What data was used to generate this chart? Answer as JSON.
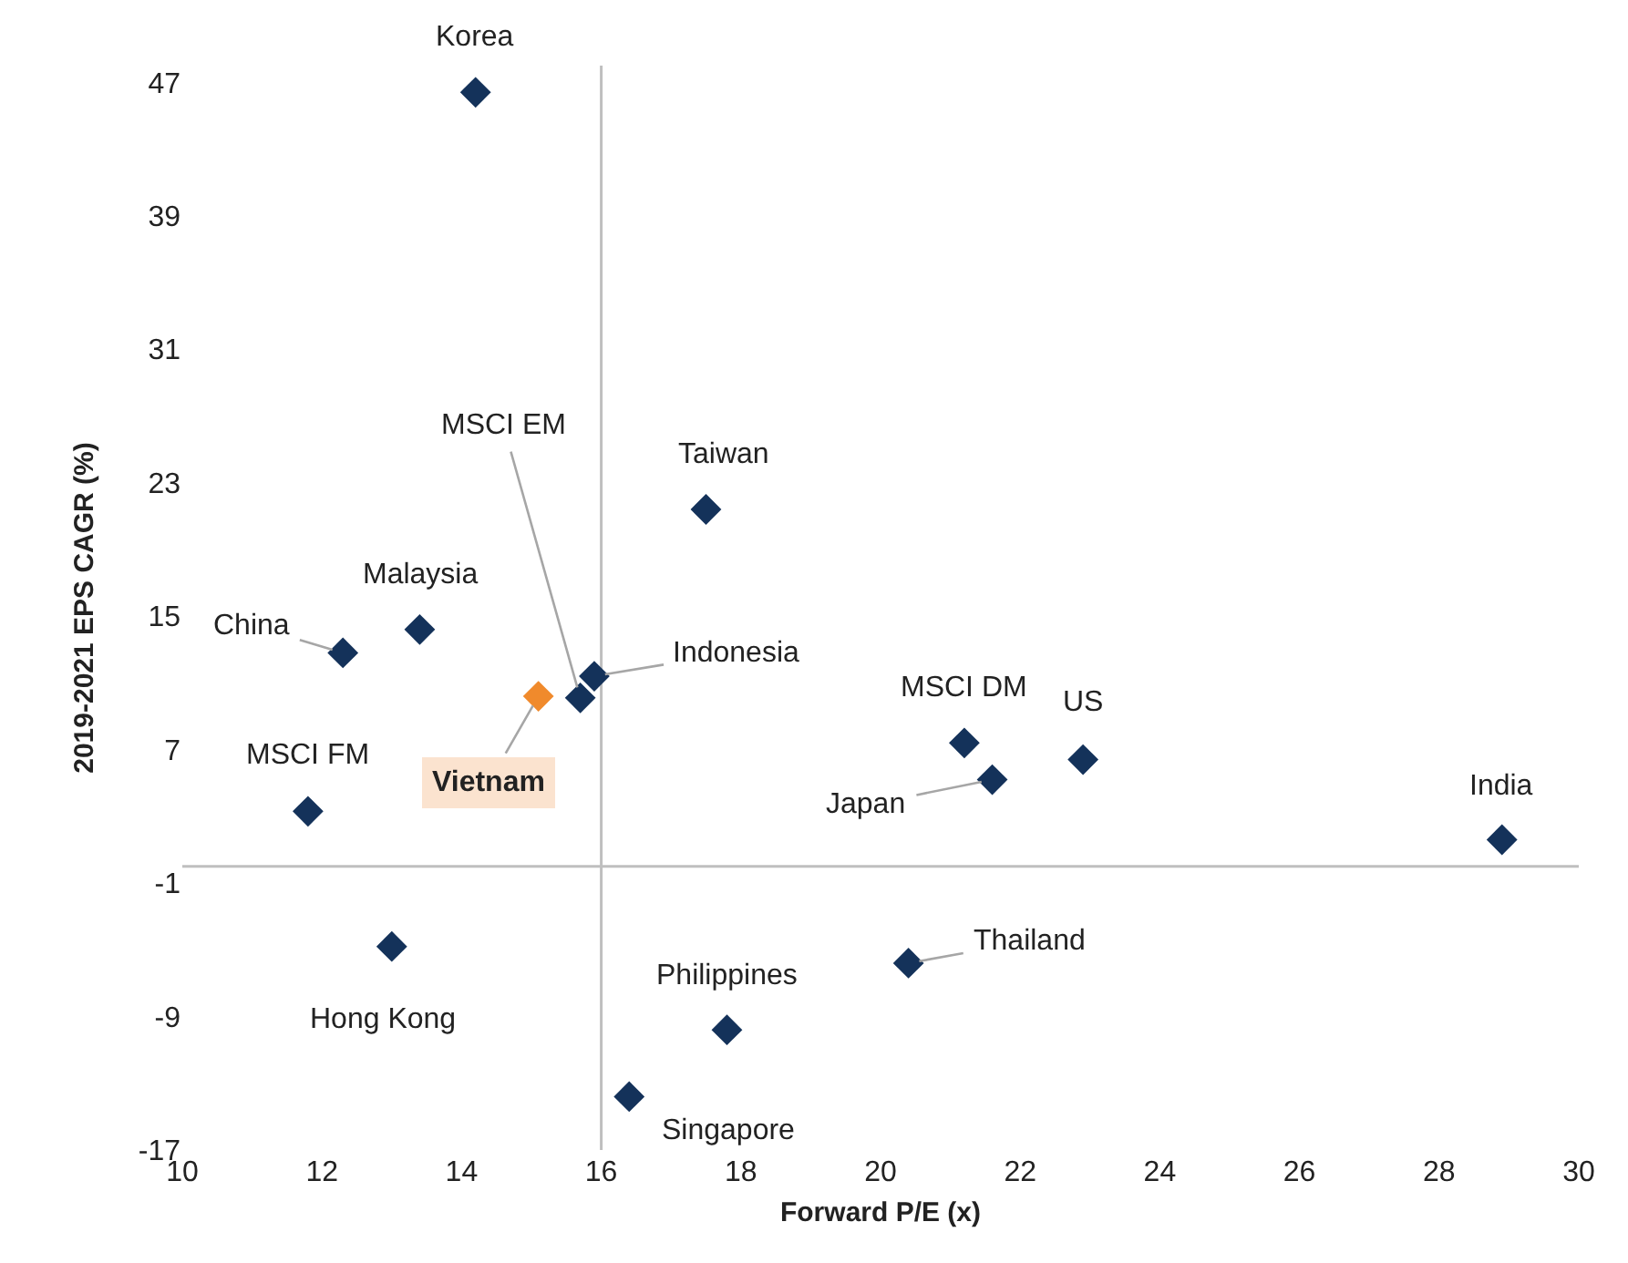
{
  "chart_data": {
    "type": "scatter",
    "xlabel": "Forward P/E (x)",
    "ylabel": "2019-2021 EPS CAGR (%)",
    "xlim": [
      10,
      30
    ],
    "xticks": [
      10,
      12,
      14,
      16,
      18,
      20,
      22,
      24,
      26,
      28,
      30
    ],
    "ylim": [
      -17,
      48
    ],
    "yticks": [
      -17,
      -9,
      -1,
      7,
      15,
      23,
      31,
      39,
      47
    ],
    "marker": "diamond",
    "series": [
      {
        "x": [
          14.2,
          17.5,
          13.4,
          12.3,
          15.7,
          15.9,
          15.1,
          11.8,
          21.2,
          21.6,
          22.9,
          28.9,
          13.0,
          20.4,
          17.8,
          16.4
        ],
        "values": [
          46.4,
          21.4,
          14.2,
          12.8,
          10.1,
          11.4,
          10.2,
          3.3,
          7.4,
          5.2,
          6.4,
          1.6,
          -4.8,
          -5.8,
          -9.8,
          -13.8
        ],
        "colors": [
          "#14325a",
          "#14325a",
          "#14325a",
          "#14325a",
          "#14325a",
          "#14325a",
          "#f08a2c",
          "#14325a",
          "#14325a",
          "#14325a",
          "#14325a",
          "#14325a",
          "#14325a",
          "#14325a",
          "#14325a",
          "#14325a"
        ]
      }
    ],
    "annotations": [
      {
        "text": "Korea",
        "x": 14.2,
        "y": 46.4
      },
      {
        "text": "Taiwan",
        "x": 17.5,
        "y": 21.4
      },
      {
        "text": "Malaysia",
        "x": 13.4,
        "y": 14.2
      },
      {
        "text": "China",
        "x": 12.3,
        "y": 12.8
      },
      {
        "text": "MSCI EM",
        "x": 15.7,
        "y": 10.1
      },
      {
        "text": "Indonesia",
        "x": 15.9,
        "y": 11.4
      },
      {
        "text": "Vietnam",
        "x": 15.1,
        "y": 10.2
      },
      {
        "text": "MSCI FM",
        "x": 11.8,
        "y": 3.3
      },
      {
        "text": "MSCI DM",
        "x": 21.2,
        "y": 7.4
      },
      {
        "text": "Japan",
        "x": 21.6,
        "y": 5.2
      },
      {
        "text": "US",
        "x": 22.9,
        "y": 6.4
      },
      {
        "text": "India",
        "x": 28.9,
        "y": 1.6
      },
      {
        "text": "Hong Kong",
        "x": 13.0,
        "y": -4.8
      },
      {
        "text": "Thailand",
        "x": 20.4,
        "y": -5.8
      },
      {
        "text": "Philippines",
        "x": 17.8,
        "y": -9.8
      },
      {
        "text": "Singapore",
        "x": 16.4,
        "y": -13.8
      }
    ],
    "ref_lines": [
      {
        "axis": "x",
        "value": 16,
        "color": "#bfbfbf"
      },
      {
        "axis": "y",
        "value": 0,
        "color": "#bfbfbf"
      }
    ]
  }
}
